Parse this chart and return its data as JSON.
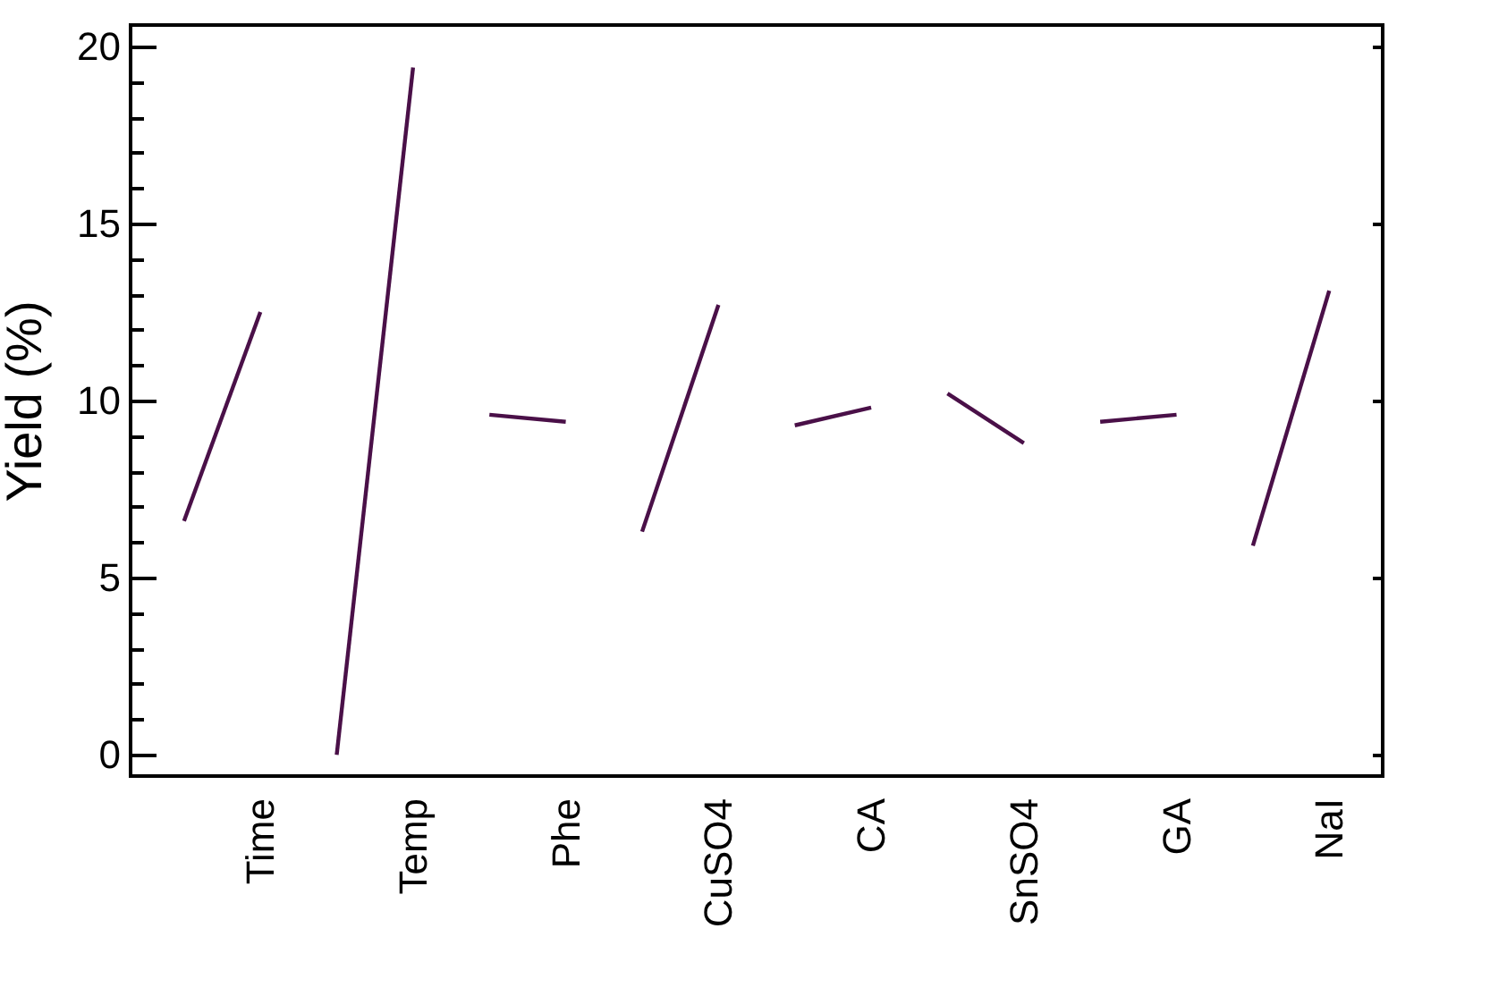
{
  "chart_data": {
    "type": "line",
    "ylabel": "Yield (%)",
    "line_style": "solid",
    "categories": [
      null,
      "Time",
      null,
      "Temp",
      null,
      "Phe",
      null,
      "CuSO4",
      null,
      "CA",
      null,
      "SnSO4",
      null,
      "GA",
      null,
      "NaI"
    ],
    "ylim": [
      -0.6,
      20.6
    ],
    "yticks": [
      0,
      {
        "value": 1,
        "label": null
      },
      {
        "value": 2,
        "label": null
      },
      {
        "value": 3,
        "label": null
      },
      {
        "value": 4,
        "label": null
      },
      5,
      {
        "value": 6,
        "label": null
      },
      {
        "value": 7,
        "label": null
      },
      {
        "value": 8,
        "label": null
      },
      {
        "value": 9,
        "label": null
      },
      10,
      {
        "value": 11,
        "label": null
      },
      {
        "value": 12,
        "label": null
      },
      {
        "value": 13,
        "label": null
      },
      {
        "value": 14,
        "label": null
      },
      15,
      {
        "value": 16,
        "label": null
      },
      {
        "value": 17,
        "label": null
      },
      {
        "value": 18,
        "label": null
      },
      {
        "value": 19,
        "label": null
      },
      20
    ],
    "series": [
      {
        "color": "#4a1048",
        "values": [
          6.6,
          12.5,
          null,
          null,
          null,
          null,
          null,
          null,
          null,
          null,
          null,
          null,
          null,
          null,
          null,
          null
        ]
      },
      {
        "color": "#4a1048",
        "values": [
          null,
          null,
          0,
          19.4,
          null,
          null,
          null,
          null,
          null,
          null,
          null,
          null,
          null,
          null,
          null,
          null
        ]
      },
      {
        "color": "#4a1048",
        "values": [
          null,
          null,
          null,
          null,
          9.6,
          9.4,
          null,
          null,
          null,
          null,
          null,
          null,
          null,
          null,
          null,
          null
        ]
      },
      {
        "color": "#4a1048",
        "values": [
          null,
          null,
          null,
          null,
          null,
          null,
          6.3,
          12.7,
          null,
          null,
          null,
          null,
          null,
          null,
          null,
          null
        ]
      },
      {
        "color": "#4a1048",
        "values": [
          null,
          null,
          null,
          null,
          null,
          null,
          null,
          null,
          9.3,
          9.8,
          null,
          null,
          null,
          null,
          null,
          null
        ]
      },
      {
        "color": "#4a1048",
        "values": [
          null,
          null,
          null,
          null,
          null,
          null,
          null,
          null,
          null,
          null,
          10.2,
          8.8,
          null,
          null,
          null,
          null
        ]
      },
      {
        "color": "#4a1048",
        "values": [
          null,
          null,
          null,
          null,
          null,
          null,
          null,
          null,
          null,
          null,
          null,
          null,
          9.4,
          9.6,
          null,
          null
        ]
      },
      {
        "color": "#4a1048",
        "values": [
          null,
          null,
          null,
          null,
          null,
          null,
          null,
          null,
          null,
          null,
          null,
          null,
          null,
          null,
          5.9,
          13.1
        ]
      }
    ]
  }
}
